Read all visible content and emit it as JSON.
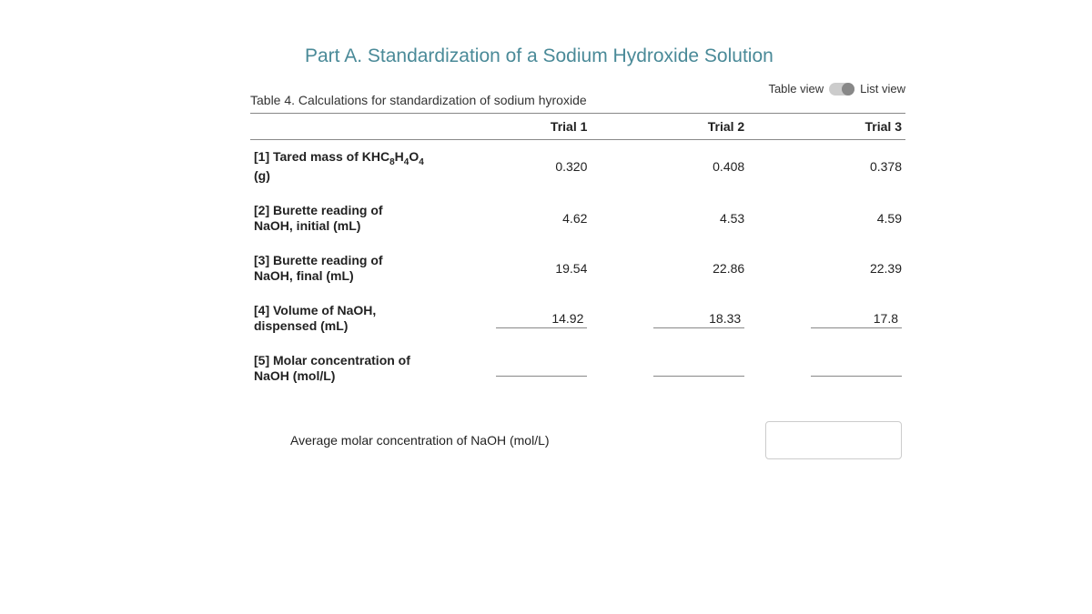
{
  "section_title": "Part A. Standardization of a Sodium Hydroxide Solution",
  "view_toggle": {
    "left": "Table view",
    "right": "List view"
  },
  "table_caption": "Table 4. Calculations for standardization of sodium hyroxide",
  "columns": {
    "c1": "Trial 1",
    "c2": "Trial 2",
    "c3": "Trial 3"
  },
  "rows": {
    "r1": {
      "label_pre": "[1] Tared mass of KHC",
      "label_sub1": "8",
      "label_mid": "H",
      "label_sub2": "4",
      "label_mid2": "O",
      "label_sub3": "4",
      "label_post": " (g)",
      "t1": "0.320",
      "t2": "0.408",
      "t3": "0.378",
      "editable": false
    },
    "r2": {
      "label": "[2] Burette reading of NaOH, initial (mL)",
      "t1": "4.62",
      "t2": "4.53",
      "t3": "4.59",
      "editable": false
    },
    "r3": {
      "label": "[3] Burette reading of NaOH, final (mL)",
      "t1": "19.54",
      "t2": "22.86",
      "t3": "22.39",
      "editable": false
    },
    "r4": {
      "label": "[4] Volume of NaOH, dispensed (mL)",
      "t1": "14.92",
      "t2": "18.33",
      "t3": "17.8",
      "editable": true
    },
    "r5": {
      "label": "[5] Molar concentration of NaOH (mol/L)",
      "t1": "",
      "t2": "",
      "t3": "",
      "editable": true
    }
  },
  "average": {
    "label": "Average molar concentration of NaOH (mol/L)",
    "value": ""
  },
  "colors": {
    "title": "#4a8a98",
    "border": "#888888",
    "text": "#222222"
  }
}
